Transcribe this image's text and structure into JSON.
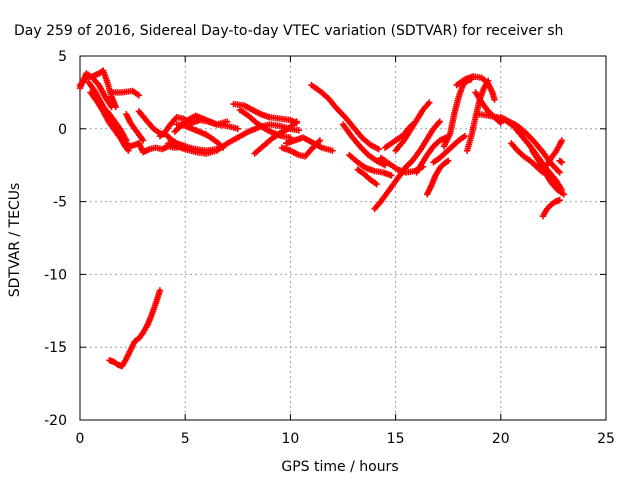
{
  "chart_data": {
    "type": "scatter",
    "title": "Day 259 of 2016, Sidereal Day-to-day VTEC variation (SDTVAR) for receiver sh",
    "xlabel": "GPS time / hours",
    "ylabel": "SDTVAR / TECUs",
    "xlim": [
      0,
      25
    ],
    "ylim": [
      -20,
      5
    ],
    "xticks": [
      "0",
      "5",
      "10",
      "15",
      "20",
      "25"
    ],
    "yticks": [
      "5",
      "0",
      "-5",
      "-10",
      "-15",
      "-20"
    ],
    "grid": true,
    "legend": "none",
    "marker_color": "#ff0000",
    "marker": "plus",
    "series": [
      {
        "x": [
          0.0,
          0.3,
          0.6,
          0.9,
          1.1,
          1.3,
          1.5,
          1.7
        ],
        "y": [
          3.0,
          3.5,
          3.6,
          3.8,
          4.0,
          3.2,
          2.2,
          1.5
        ]
      },
      {
        "x": [
          0.0,
          0.3,
          0.6,
          0.9,
          1.2,
          1.5
        ],
        "y": [
          2.8,
          3.8,
          3.5,
          3.0,
          2.2,
          1.5
        ]
      },
      {
        "x": [
          0.4,
          0.7,
          1.0,
          1.3,
          1.6,
          1.9,
          2.1,
          2.3
        ],
        "y": [
          3.2,
          2.6,
          1.8,
          1.0,
          0.2,
          -0.5,
          -1.1,
          -1.5
        ]
      },
      {
        "x": [
          0.5,
          0.8,
          1.1,
          1.4,
          1.7,
          2.0,
          2.4,
          2.8
        ],
        "y": [
          2.5,
          1.9,
          1.2,
          0.4,
          -0.2,
          -0.8,
          -1.2,
          -1.0
        ]
      },
      {
        "x": [
          1.5,
          2.0,
          2.5,
          2.8
        ],
        "y": [
          2.5,
          2.5,
          2.6,
          2.3
        ]
      },
      {
        "x": [
          1.3,
          1.6,
          1.9,
          2.2
        ],
        "y": [
          1.2,
          0.6,
          0.0,
          -0.8
        ]
      },
      {
        "x": [
          2.2,
          2.4,
          2.7,
          3.0
        ],
        "y": [
          1.0,
          0.4,
          -0.2,
          -0.8
        ]
      },
      {
        "x": [
          2.8,
          3.0,
          3.3,
          3.6,
          3.9,
          4.2,
          4.5,
          4.8
        ],
        "y": [
          -1.0,
          -1.6,
          -1.4,
          -1.3,
          -1.4,
          -1.2,
          -1.3,
          -1.2
        ]
      },
      {
        "x": [
          2.8,
          3.2,
          3.5,
          3.8,
          4.1,
          4.3,
          4.6,
          5.0,
          5.5,
          6.0,
          6.5
        ],
        "y": [
          1.2,
          0.5,
          0.0,
          -0.3,
          -0.4,
          -0.7,
          -1.0,
          -1.2,
          -1.4,
          -1.5,
          -1.4
        ]
      },
      {
        "x": [
          3.8,
          4.0,
          4.3,
          4.6,
          4.9,
          5.3,
          5.7,
          6.1,
          6.5,
          7.0
        ],
        "y": [
          -0.5,
          -0.3,
          0.3,
          0.8,
          0.7,
          0.4,
          0.6,
          0.5,
          0.3,
          0.5
        ]
      },
      {
        "x": [
          4.2,
          4.6,
          5.0,
          5.5,
          6.0,
          6.5,
          7.0,
          7.5,
          8.0,
          8.5,
          9.0,
          9.5,
          10.0,
          10.4
        ],
        "y": [
          -1.0,
          -1.2,
          -1.4,
          -1.6,
          -1.7,
          -1.5,
          -1.0,
          -0.6,
          -0.2,
          0.1,
          0.3,
          0.2,
          0.0,
          -0.1
        ]
      },
      {
        "x": [
          4.5,
          5.0,
          5.5,
          6.0,
          6.5,
          7.0,
          7.5
        ],
        "y": [
          -0.2,
          0.5,
          0.9,
          0.6,
          0.3,
          0.2,
          0.0
        ]
      },
      {
        "x": [
          4.6,
          5.0,
          5.5,
          6.0,
          6.5,
          6.8
        ],
        "y": [
          0.3,
          0.2,
          -0.1,
          -0.4,
          -0.9,
          -1.3
        ]
      },
      {
        "x": [
          7.3,
          7.8,
          8.2,
          8.6,
          9.0,
          9.5,
          10.0,
          10.3
        ],
        "y": [
          1.7,
          1.6,
          1.3,
          1.0,
          0.8,
          0.7,
          0.6,
          0.4
        ]
      },
      {
        "x": [
          7.6,
          8.0,
          8.4,
          8.8,
          9.2,
          9.6,
          10.0
        ],
        "y": [
          1.3,
          0.9,
          0.4,
          0.0,
          -0.3,
          -0.5,
          -0.6
        ]
      },
      {
        "x": [
          8.3,
          8.7,
          9.1,
          9.5,
          9.9,
          10.3
        ],
        "y": [
          -1.7,
          -1.2,
          -0.7,
          -0.3,
          0.0,
          0.5
        ]
      },
      {
        "x": [
          9.6,
          10.0,
          10.4,
          10.7,
          11.0,
          11.4
        ],
        "y": [
          -1.3,
          -1.5,
          -1.8,
          -1.9,
          -1.4,
          -0.8
        ]
      },
      {
        "x": [
          9.8,
          10.2,
          10.6,
          11.0,
          11.5,
          12.0
        ],
        "y": [
          -1.0,
          -0.8,
          -0.6,
          -0.9,
          -1.3,
          -1.5
        ]
      },
      {
        "x": [
          11.0,
          11.4,
          11.8,
          12.2,
          12.6,
          13.0,
          13.4,
          13.8,
          14.2
        ],
        "y": [
          3.0,
          2.6,
          2.1,
          1.4,
          0.8,
          0.1,
          -0.6,
          -1.1,
          -1.4
        ]
      },
      {
        "x": [
          12.5,
          12.9,
          13.3,
          13.7,
          14.1,
          14.5
        ],
        "y": [
          0.3,
          -0.5,
          -1.2,
          -1.8,
          -2.2,
          -2.5
        ]
      },
      {
        "x": [
          12.8,
          13.2,
          13.6,
          14.0,
          14.4,
          14.8
        ],
        "y": [
          -1.8,
          -2.3,
          -2.7,
          -2.9,
          -3.0,
          -3.2
        ]
      },
      {
        "x": [
          13.2,
          13.5,
          13.8,
          14.1
        ],
        "y": [
          -2.8,
          -3.1,
          -3.5,
          -3.8
        ]
      },
      {
        "x": [
          14.0,
          14.3,
          14.6,
          14.9,
          15.2,
          15.5,
          15.8
        ],
        "y": [
          -5.5,
          -5.0,
          -4.4,
          -3.8,
          -3.2,
          -2.6,
          -2.2
        ]
      },
      {
        "x": [
          14.3,
          14.7,
          15.1,
          15.5,
          15.9,
          16.3
        ],
        "y": [
          -2.0,
          -2.4,
          -2.8,
          -3.0,
          -2.9,
          -2.6
        ]
      },
      {
        "x": [
          14.5,
          14.8,
          15.1,
          15.4,
          15.6,
          15.8
        ],
        "y": [
          -1.3,
          -1.0,
          -0.7,
          -0.4,
          0.0,
          0.3
        ]
      },
      {
        "x": [
          15.0,
          15.4,
          15.7,
          16.0,
          16.3,
          16.6
        ],
        "y": [
          -1.5,
          -0.8,
          -0.1,
          0.6,
          1.3,
          1.8
        ]
      },
      {
        "x": [
          15.6,
          15.9,
          16.2,
          16.5,
          16.8,
          17.1
        ],
        "y": [
          -2.5,
          -2.0,
          -1.4,
          -0.7,
          0.0,
          0.5
        ]
      },
      {
        "x": [
          16.0,
          16.2,
          16.5,
          16.8,
          17.1,
          17.4
        ],
        "y": [
          -3.0,
          -2.5,
          -1.8,
          -1.2,
          -0.8,
          -0.6
        ]
      },
      {
        "x": [
          16.5,
          16.7,
          16.9,
          17.1,
          17.3,
          17.5
        ],
        "y": [
          -4.5,
          -3.9,
          -3.2,
          -2.7,
          -2.4,
          -2.2
        ]
      },
      {
        "x": [
          16.8,
          17.1,
          17.4,
          17.7,
          18.0,
          18.3
        ],
        "y": [
          -2.3,
          -2.0,
          -1.6,
          -1.2,
          -0.8,
          -0.5
        ]
      },
      {
        "x": [
          17.3,
          17.6,
          17.8,
          18.0,
          18.2,
          18.4,
          18.6
        ],
        "y": [
          -1.2,
          -0.3,
          1.1,
          2.2,
          3.0,
          3.3,
          3.4
        ]
      },
      {
        "x": [
          17.9,
          18.3,
          18.7,
          19.1,
          19.4,
          19.6,
          19.7
        ],
        "y": [
          3.0,
          3.4,
          3.6,
          3.5,
          3.1,
          2.5,
          2.0
        ]
      },
      {
        "x": [
          18.4,
          18.6,
          18.8,
          19.0,
          19.2,
          19.4
        ],
        "y": [
          -1.5,
          -0.5,
          0.8,
          2.0,
          2.8,
          3.3
        ]
      },
      {
        "x": [
          18.8,
          19.1,
          19.4,
          19.7,
          20.0
        ],
        "y": [
          2.5,
          1.8,
          1.2,
          0.8,
          0.4
        ]
      },
      {
        "x": [
          19.0,
          19.4,
          19.8,
          20.2,
          20.6,
          21.0,
          21.4,
          21.8,
          22.2,
          22.6,
          22.9
        ],
        "y": [
          1.0,
          0.9,
          0.8,
          0.6,
          0.2,
          -0.5,
          -1.2,
          -2.0,
          -2.8,
          -3.5,
          -4.2
        ]
      },
      {
        "x": [
          20.0,
          20.4,
          20.8,
          21.2,
          21.6,
          22.0,
          22.4,
          22.8
        ],
        "y": [
          0.8,
          0.5,
          0.2,
          -0.3,
          -0.9,
          -1.6,
          -2.4,
          -3.0
        ]
      },
      {
        "x": [
          20.5,
          20.8,
          21.1,
          21.4,
          21.7,
          22.0
        ],
        "y": [
          -1.0,
          -1.5,
          -1.9,
          -2.2,
          -2.6,
          -3.0
        ]
      },
      {
        "x": [
          21.5,
          21.8,
          22.1,
          22.4,
          22.7,
          23.0
        ],
        "y": [
          -1.5,
          -2.2,
          -3.0,
          -3.7,
          -4.2,
          -4.5
        ]
      },
      {
        "x": [
          22.0,
          22.2,
          22.4,
          22.6,
          22.8
        ],
        "y": [
          -6.0,
          -5.5,
          -5.2,
          -5.0,
          -4.9
        ]
      },
      {
        "x": [
          22.2,
          22.4,
          22.6,
          22.8,
          22.9
        ],
        "y": [
          -2.5,
          -2.0,
          -1.6,
          -1.1,
          -0.8
        ]
      },
      {
        "x": [
          22.8,
          22.9
        ],
        "y": [
          -2.2,
          -2.3
        ]
      },
      {
        "x": [
          1.4,
          1.6,
          1.8,
          2.0,
          2.2,
          2.4,
          2.6,
          2.8,
          3.0,
          3.2,
          3.4,
          3.6,
          3.8
        ],
        "y": [
          -15.9,
          -16.0,
          -16.2,
          -16.3,
          -15.8,
          -15.2,
          -14.6,
          -14.4,
          -14.0,
          -13.5,
          -12.8,
          -12.0,
          -11.1
        ]
      }
    ]
  }
}
